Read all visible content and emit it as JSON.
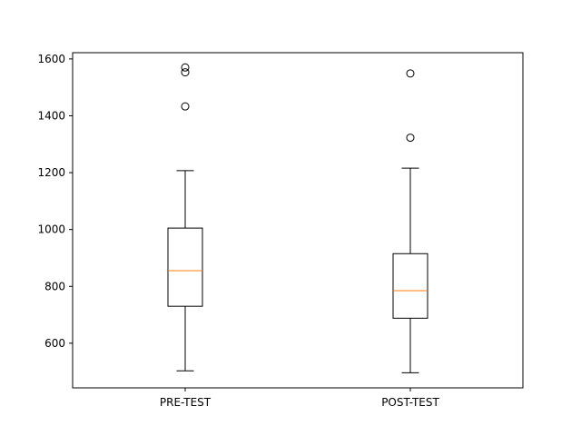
{
  "chart_data": {
    "type": "box",
    "title": "",
    "xlabel": "",
    "ylabel": "",
    "ylim": [
      443,
      1622
    ],
    "yticks": [
      600,
      800,
      1000,
      1200,
      1400,
      1600
    ],
    "grid": false,
    "categories": [
      "PRE-TEST",
      "POST-TEST"
    ],
    "boxes": [
      {
        "label": "PRE-TEST",
        "whisker_low": 503,
        "q1": 730,
        "median": 855,
        "q3": 1005,
        "whisker_high": 1207,
        "outliers": [
          1433,
          1553,
          1570
        ]
      },
      {
        "label": "POST-TEST",
        "whisker_low": 496,
        "q1": 688,
        "median": 785,
        "q3": 915,
        "whisker_high": 1216,
        "outliers": [
          1323,
          1549
        ]
      }
    ],
    "colors": {
      "box": "#000000",
      "median": "#ff7f0e",
      "axes": "#000000"
    }
  }
}
